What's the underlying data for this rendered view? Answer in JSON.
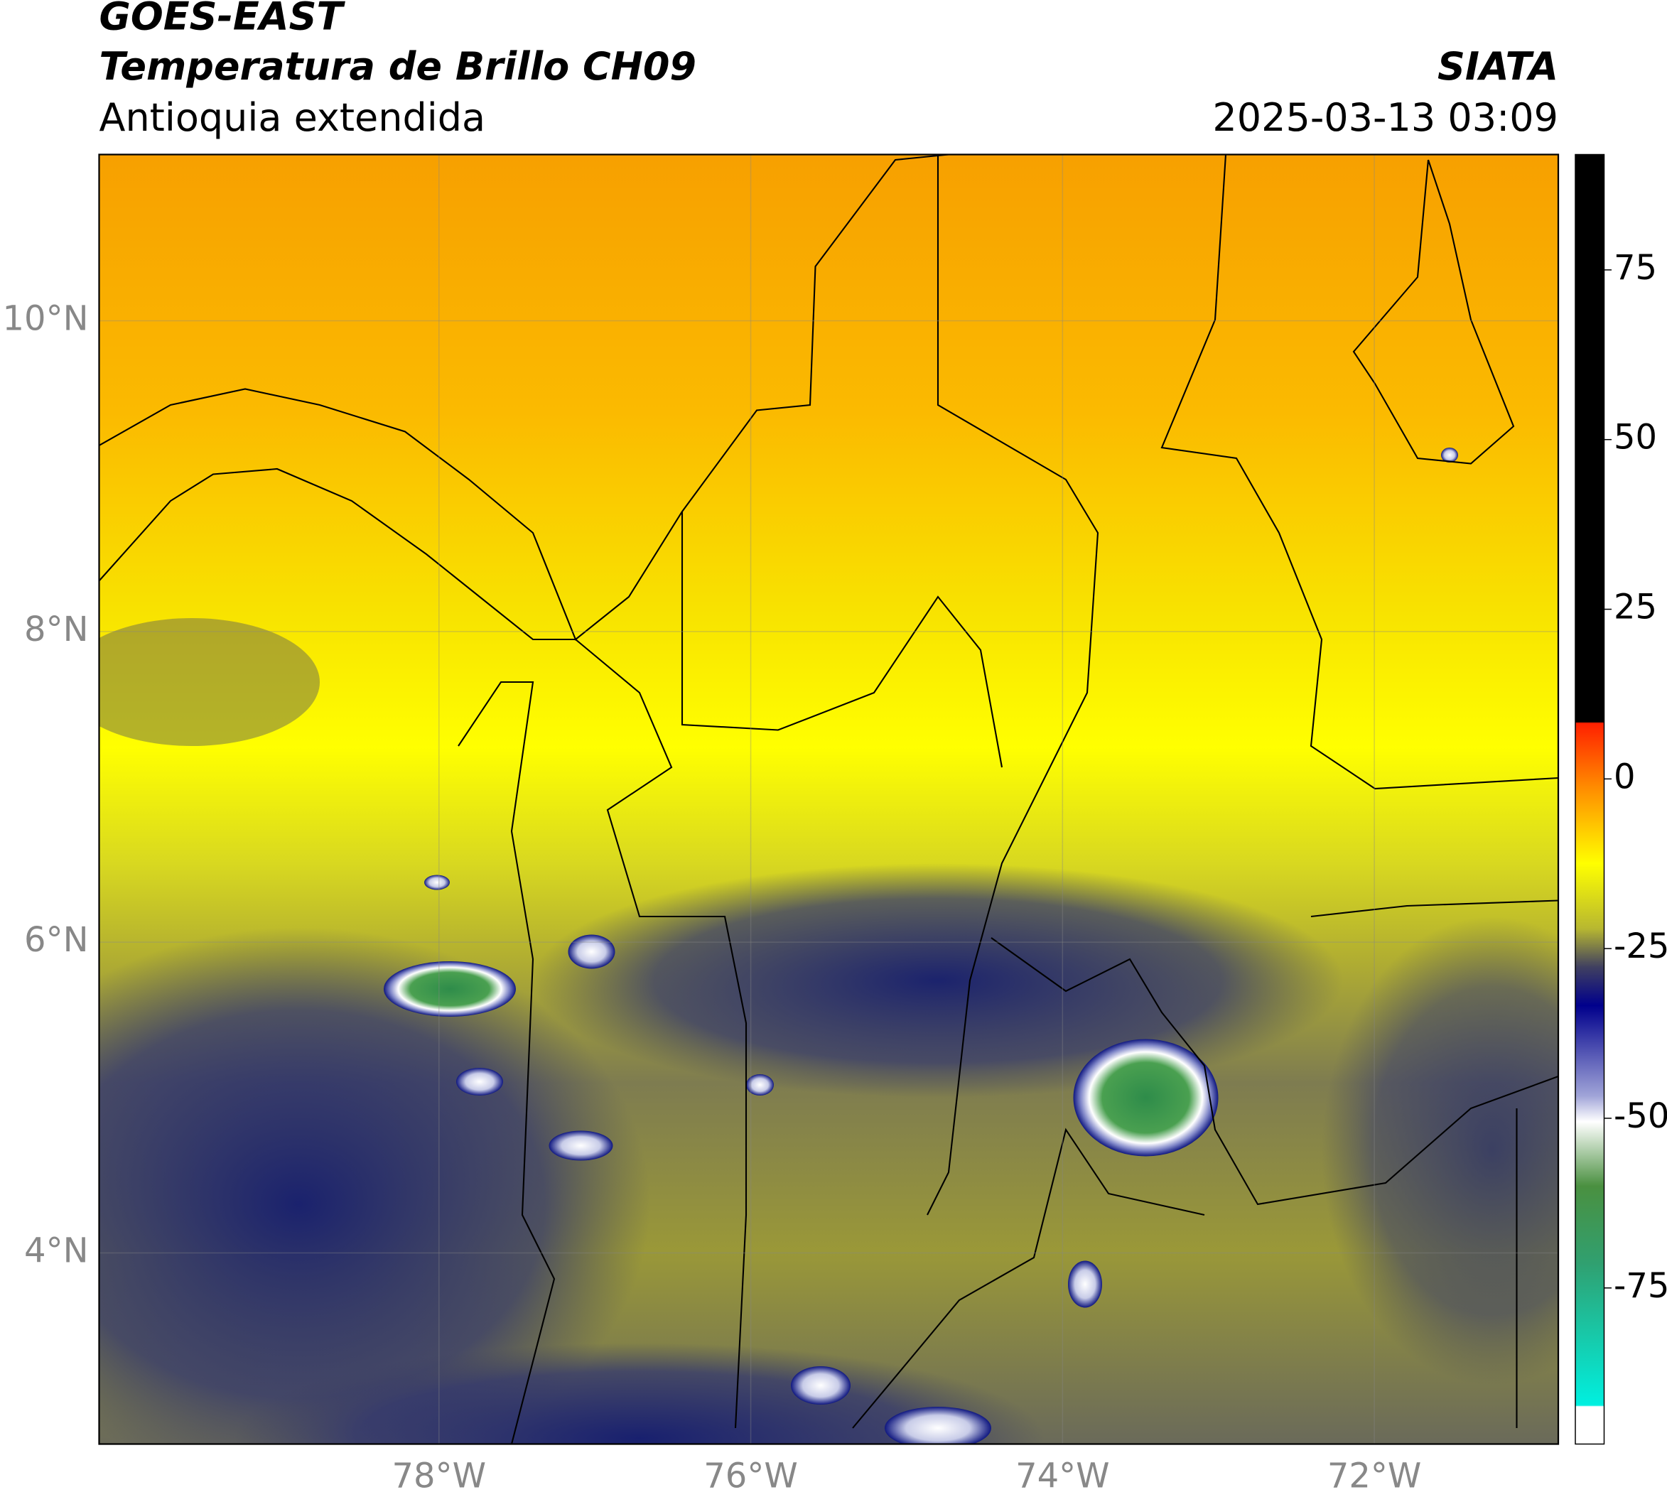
{
  "header": {
    "title": "GOES-EAST",
    "subtitle": "Temperatura de Brillo CH09",
    "region": "Antioquia extendida",
    "source": "SIATA",
    "timestamp": "2025-03-13 03:09"
  },
  "map": {
    "xlim": [
      -80.18,
      -70.82
    ],
    "ylim": [
      2.77,
      11.07
    ],
    "grid": true,
    "xticks": [
      {
        "value": -78,
        "label": "78°W"
      },
      {
        "value": -76,
        "label": "76°W"
      },
      {
        "value": -74,
        "label": "74°W"
      },
      {
        "value": -72,
        "label": "72°W"
      }
    ],
    "yticks": [
      {
        "value": 4,
        "label": "4°N"
      },
      {
        "value": 6,
        "label": "6°N"
      },
      {
        "value": 8,
        "label": "8°N"
      },
      {
        "value": 10,
        "label": "10°N"
      }
    ]
  },
  "colorbar": {
    "lim": [
      -98,
      92
    ],
    "ticks": [
      -75,
      -50,
      -25,
      0,
      25,
      50,
      75
    ]
  }
}
